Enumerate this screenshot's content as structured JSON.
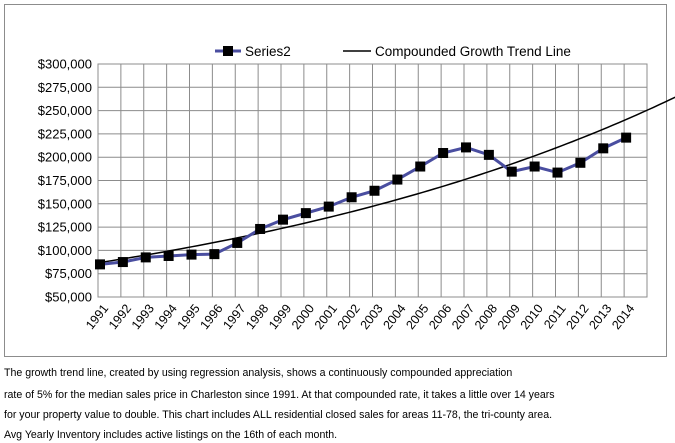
{
  "chart_data": {
    "type": "line",
    "title": "",
    "xlabel": "",
    "ylabel": "",
    "categories": [
      "1991",
      "1992",
      "1993",
      "1994",
      "1995",
      "1996",
      "1997",
      "1998",
      "1999",
      "2000",
      "2001",
      "2002",
      "2003",
      "2004",
      "2005",
      "2006",
      "2007",
      "2008",
      "2009",
      "2010",
      "2011",
      "2012",
      "2013",
      "2014"
    ],
    "ylim": [
      50000,
      300000
    ],
    "ytick_labels": [
      "$300,000",
      "$275,000",
      "$250,000",
      "$225,000",
      "$200,000",
      "$175,000",
      "$150,000",
      "$125,000",
      "$100,000",
      "$75,000",
      "$50,000"
    ],
    "grid": true,
    "legend_position": "top",
    "series": [
      {
        "name": "Series2",
        "color": "#4a4ea0",
        "marker": "square",
        "values": [
          85000,
          87500,
          92500,
          94000,
          95500,
          96000,
          108000,
          123000,
          133000,
          140000,
          147000,
          157000,
          164000,
          176000,
          190000,
          204500,
          210500,
          202500,
          184500,
          190000,
          183500,
          194000,
          209500,
          221000
        ]
      },
      {
        "name": "Compounded Growth Trend Line",
        "color": "#000000",
        "type": "trend",
        "values_at_x_index": [
          [
            0,
            87000
          ],
          [
            5,
            106000
          ],
          [
            10,
            135000
          ],
          [
            15,
            170000
          ],
          [
            17,
            182000
          ],
          [
            23,
            238000
          ],
          [
            25.2,
            265000
          ]
        ]
      }
    ]
  },
  "caption": {
    "line1": "The growth trend line, created by using regression analysis, shows a continuously compounded appreciation",
    "line2": "rate of 5% for the median sales price in Charleston since 1991.  At that compounded rate, it takes a little over 14 years",
    "line3": "for your property value to double. This chart includes ALL residential closed sales for areas 11-78, the tri-county area.",
    "line4": "Avg Yearly Inventory includes active listings on the 16th of each month."
  }
}
